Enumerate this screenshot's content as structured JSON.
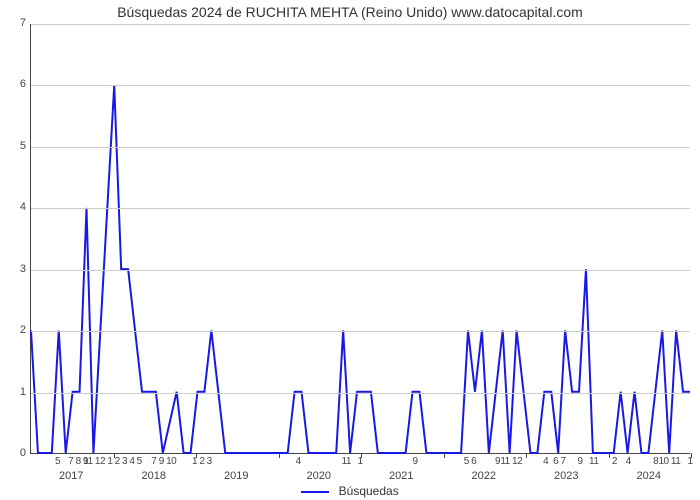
{
  "chart": {
    "type": "line",
    "title": "Búsquedas 2024 de RUCHITA MEHTA (Reino Unido) www.datocapital.com",
    "title_fontsize": 14,
    "title_color": "#333333",
    "background_color": "#ffffff",
    "line_color": "#1919e6",
    "line_width": 2,
    "grid_color": "#cccccc",
    "axis_color": "#444444",
    "y": {
      "min": 0,
      "max": 7,
      "ticks": [
        0,
        1,
        2,
        3,
        4,
        5,
        6,
        7
      ]
    },
    "x": {
      "year_labels": [
        "2017",
        "2018",
        "2019",
        "2020",
        "2021",
        "2022",
        "2023",
        "2024"
      ],
      "months_per_year": 12,
      "total_months": 96,
      "tick_group_labels": [
        "5",
        "7 8 9",
        "11 12 1 2 3 4 5",
        "7",
        "9 10",
        "1 2 3",
        "4",
        "11",
        "1",
        "9",
        "5 6",
        "9",
        "11 12",
        "4",
        "6 7",
        "9",
        "11",
        "2",
        "4",
        "8",
        "10 11",
        "1",
        "4"
      ],
      "tick_group_positions": [
        4,
        7,
        12,
        18,
        20,
        25,
        39,
        46,
        48,
        56,
        64,
        68,
        70,
        75,
        77,
        80,
        82,
        85,
        87,
        91,
        93,
        96,
        99
      ]
    },
    "series": {
      "x": [
        0,
        1,
        2,
        3,
        4,
        5,
        6,
        7,
        8,
        9,
        10,
        11,
        12,
        13,
        14,
        15,
        16,
        17,
        18,
        19,
        20,
        21,
        22,
        23,
        24,
        25,
        26,
        27,
        28,
        29,
        30,
        31,
        32,
        33,
        34,
        35,
        36,
        37,
        38,
        39,
        40,
        41,
        42,
        43,
        44,
        45,
        46,
        47,
        48,
        49,
        50,
        51,
        52,
        53,
        54,
        55,
        56,
        57,
        58,
        59,
        60,
        61,
        62,
        63,
        64,
        65,
        66,
        67,
        68,
        69,
        70,
        71,
        72,
        73,
        74,
        75,
        76,
        77,
        78,
        79,
        80,
        81,
        82,
        83,
        84,
        85,
        86,
        87,
        88,
        89,
        90,
        91,
        92,
        93,
        94,
        95
      ],
      "y": [
        2,
        0,
        0,
        0,
        2,
        0,
        1,
        1,
        4,
        0,
        2,
        4,
        6,
        3,
        3,
        2,
        1,
        1,
        1,
        0,
        0.5,
        1,
        0,
        0,
        1,
        1,
        2,
        1,
        0,
        0,
        0,
        0,
        0,
        0,
        0,
        0,
        0,
        0,
        1,
        1,
        0,
        0,
        0,
        0,
        0,
        2,
        0,
        1,
        1,
        1,
        0,
        0,
        0,
        0,
        0,
        1,
        1,
        0,
        0,
        0,
        0,
        0,
        0,
        2,
        1,
        2,
        0,
        1,
        2,
        0,
        2,
        1,
        0,
        0,
        1,
        1,
        0,
        2,
        1,
        1,
        3,
        0,
        0,
        0,
        0,
        1,
        0,
        1,
        0,
        0,
        1,
        2,
        0,
        2,
        1,
        1
      ]
    },
    "legend": {
      "label": "Búsquedas",
      "color": "#1919e6"
    }
  }
}
